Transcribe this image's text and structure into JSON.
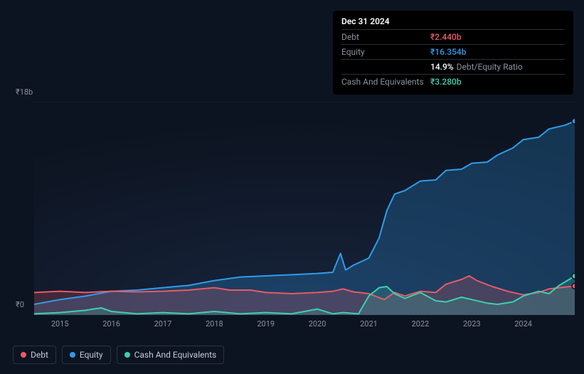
{
  "tooltip": {
    "date": "Dec 31 2024",
    "rows": [
      {
        "label": "Debt",
        "value": "₹2.440b",
        "color": "#e85b66"
      },
      {
        "label": "Equity",
        "value": "₹16.354b",
        "color": "#2f9ceb"
      },
      {
        "label": "",
        "value": "14.9%",
        "secondary": "Debt/Equity Ratio",
        "color": "#ffffff"
      },
      {
        "label": "Cash And Equivalents",
        "value": "₹3.280b",
        "color": "#3ecfaf"
      }
    ]
  },
  "chart": {
    "type": "area",
    "background_color": "#0d1421",
    "grid_top_color": "#1a2130",
    "y_axis": {
      "top_label": "₹18b",
      "bottom_label": "₹0",
      "ymin": 0,
      "ymax": 18
    },
    "x_axis": {
      "labels": [
        "2015",
        "2016",
        "2017",
        "2018",
        "2019",
        "2020",
        "2021",
        "2022",
        "2023",
        "2024"
      ],
      "min": 2014.5,
      "max": 2025.0
    },
    "series": [
      {
        "name": "Equity",
        "color": "#2f9ceb",
        "fill_opacity": 0.25,
        "line_width": 2,
        "points": [
          [
            2014.5,
            0.9
          ],
          [
            2015.0,
            1.3
          ],
          [
            2015.5,
            1.6
          ],
          [
            2016.0,
            2.0
          ],
          [
            2016.5,
            2.1
          ],
          [
            2017.0,
            2.3
          ],
          [
            2017.5,
            2.5
          ],
          [
            2018.0,
            2.9
          ],
          [
            2018.5,
            3.2
          ],
          [
            2019.0,
            3.3
          ],
          [
            2019.5,
            3.4
          ],
          [
            2020.0,
            3.5
          ],
          [
            2020.3,
            3.6
          ],
          [
            2020.45,
            5.2
          ],
          [
            2020.55,
            3.8
          ],
          [
            2020.7,
            4.2
          ],
          [
            2021.0,
            4.8
          ],
          [
            2021.2,
            6.5
          ],
          [
            2021.35,
            8.8
          ],
          [
            2021.5,
            10.2
          ],
          [
            2021.7,
            10.5
          ],
          [
            2022.0,
            11.3
          ],
          [
            2022.3,
            11.4
          ],
          [
            2022.5,
            12.2
          ],
          [
            2022.8,
            12.3
          ],
          [
            2023.0,
            12.8
          ],
          [
            2023.3,
            12.9
          ],
          [
            2023.5,
            13.5
          ],
          [
            2023.8,
            14.1
          ],
          [
            2024.0,
            14.8
          ],
          [
            2024.3,
            15.0
          ],
          [
            2024.5,
            15.7
          ],
          [
            2024.8,
            16.0
          ],
          [
            2025.0,
            16.35
          ]
        ]
      },
      {
        "name": "Debt",
        "color": "#e85b66",
        "fill_opacity": 0.22,
        "line_width": 2,
        "points": [
          [
            2014.5,
            1.9
          ],
          [
            2015.0,
            2.0
          ],
          [
            2015.5,
            1.9
          ],
          [
            2016.0,
            2.0
          ],
          [
            2016.5,
            1.95
          ],
          [
            2017.0,
            2.0
          ],
          [
            2017.5,
            2.1
          ],
          [
            2018.0,
            2.3
          ],
          [
            2018.3,
            2.1
          ],
          [
            2018.7,
            2.1
          ],
          [
            2019.0,
            1.9
          ],
          [
            2019.5,
            1.8
          ],
          [
            2020.0,
            1.9
          ],
          [
            2020.3,
            2.0
          ],
          [
            2020.5,
            2.2
          ],
          [
            2020.7,
            1.95
          ],
          [
            2021.0,
            1.8
          ],
          [
            2021.3,
            1.3
          ],
          [
            2021.5,
            1.9
          ],
          [
            2021.7,
            1.6
          ],
          [
            2022.0,
            2.0
          ],
          [
            2022.3,
            1.9
          ],
          [
            2022.5,
            2.6
          ],
          [
            2022.8,
            3.0
          ],
          [
            2022.95,
            3.3
          ],
          [
            2023.1,
            2.9
          ],
          [
            2023.4,
            2.4
          ],
          [
            2023.7,
            2.0
          ],
          [
            2024.0,
            1.7
          ],
          [
            2024.3,
            1.9
          ],
          [
            2024.5,
            2.2
          ],
          [
            2024.7,
            2.3
          ],
          [
            2025.0,
            2.44
          ]
        ]
      },
      {
        "name": "Cash And Equivalents",
        "color": "#3ecfaf",
        "fill_opacity": 0.2,
        "line_width": 2,
        "points": [
          [
            2014.5,
            0.1
          ],
          [
            2015.0,
            0.2
          ],
          [
            2015.5,
            0.4
          ],
          [
            2015.8,
            0.6
          ],
          [
            2016.0,
            0.3
          ],
          [
            2016.5,
            0.1
          ],
          [
            2017.0,
            0.2
          ],
          [
            2017.5,
            0.1
          ],
          [
            2018.0,
            0.3
          ],
          [
            2018.5,
            0.1
          ],
          [
            2019.0,
            0.2
          ],
          [
            2019.5,
            0.1
          ],
          [
            2020.0,
            0.5
          ],
          [
            2020.3,
            0.1
          ],
          [
            2020.5,
            0.2
          ],
          [
            2020.8,
            0.1
          ],
          [
            2021.0,
            1.6
          ],
          [
            2021.2,
            2.3
          ],
          [
            2021.35,
            2.4
          ],
          [
            2021.5,
            1.8
          ],
          [
            2021.7,
            1.4
          ],
          [
            2022.0,
            1.9
          ],
          [
            2022.3,
            1.2
          ],
          [
            2022.5,
            1.1
          ],
          [
            2022.8,
            1.5
          ],
          [
            2023.0,
            1.3
          ],
          [
            2023.3,
            1.0
          ],
          [
            2023.5,
            0.9
          ],
          [
            2023.8,
            1.1
          ],
          [
            2024.0,
            1.6
          ],
          [
            2024.3,
            2.0
          ],
          [
            2024.5,
            1.8
          ],
          [
            2024.7,
            2.5
          ],
          [
            2025.0,
            3.28
          ]
        ]
      }
    ],
    "end_markers": true
  },
  "legend": [
    {
      "label": "Debt",
      "color": "#e85b66"
    },
    {
      "label": "Equity",
      "color": "#2f9ceb"
    },
    {
      "label": "Cash And Equivalents",
      "color": "#3ecfaf"
    }
  ]
}
